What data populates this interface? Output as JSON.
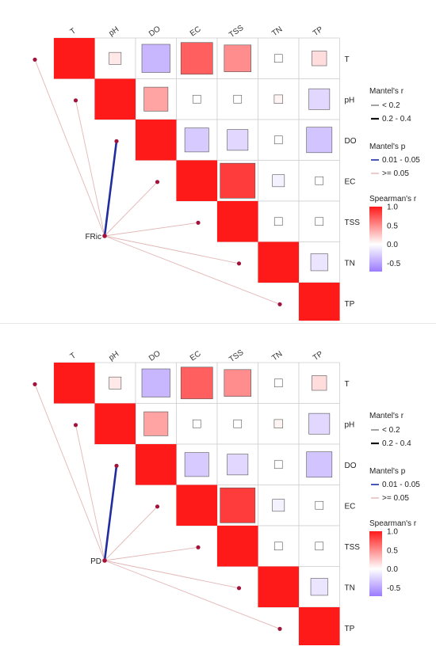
{
  "chart_data": [
    {
      "type": "heatmap",
      "title": "",
      "variables": [
        "T",
        "pH",
        "DO",
        "EC",
        "TSS",
        "TN",
        "TP"
      ],
      "spearman_r": [
        [
          1.0,
          0.1,
          -0.55,
          0.7,
          0.5,
          0.0,
          0.15
        ],
        [
          null,
          1.0,
          0.4,
          0.0,
          0.0,
          0.05,
          -0.3
        ],
        [
          null,
          null,
          1.0,
          -0.4,
          -0.3,
          0.0,
          -0.45
        ],
        [
          null,
          null,
          null,
          1.0,
          0.85,
          -0.1,
          0.0
        ],
        [
          null,
          null,
          null,
          null,
          1.0,
          0.0,
          0.0
        ],
        [
          null,
          null,
          null,
          null,
          null,
          1.0,
          -0.2
        ],
        [
          null,
          null,
          null,
          null,
          null,
          null,
          1.0
        ]
      ],
      "mantel_node": "FRic",
      "mantel_links": [
        {
          "target": "T",
          "r_class": "< 0.2",
          "p_class": ">= 0.05"
        },
        {
          "target": "pH",
          "r_class": "< 0.2",
          "p_class": ">= 0.05"
        },
        {
          "target": "DO",
          "r_class": "0.2 - 0.4",
          "p_class": "0.01 - 0.05"
        },
        {
          "target": "EC",
          "r_class": "< 0.2",
          "p_class": ">= 0.05"
        },
        {
          "target": "TSS",
          "r_class": "< 0.2",
          "p_class": ">= 0.05"
        },
        {
          "target": "TN",
          "r_class": "< 0.2",
          "p_class": ">= 0.05"
        },
        {
          "target": "TP",
          "r_class": "< 0.2",
          "p_class": ">= 0.05"
        }
      ]
    },
    {
      "type": "heatmap",
      "title": "",
      "variables": [
        "T",
        "pH",
        "DO",
        "EC",
        "TSS",
        "TN",
        "TP"
      ],
      "spearman_r": [
        [
          1.0,
          0.1,
          -0.55,
          0.7,
          0.5,
          0.0,
          0.15
        ],
        [
          null,
          1.0,
          0.4,
          0.0,
          0.0,
          0.05,
          -0.3
        ],
        [
          null,
          null,
          1.0,
          -0.4,
          -0.3,
          0.0,
          -0.45
        ],
        [
          null,
          null,
          null,
          1.0,
          0.85,
          -0.1,
          0.0
        ],
        [
          null,
          null,
          null,
          null,
          1.0,
          0.0,
          0.0
        ],
        [
          null,
          null,
          null,
          null,
          null,
          1.0,
          -0.2
        ],
        [
          null,
          null,
          null,
          null,
          null,
          null,
          1.0
        ]
      ],
      "mantel_node": "PD",
      "mantel_links": [
        {
          "target": "T",
          "r_class": "< 0.2",
          "p_class": ">= 0.05"
        },
        {
          "target": "pH",
          "r_class": "< 0.2",
          "p_class": ">= 0.05"
        },
        {
          "target": "DO",
          "r_class": "0.2 - 0.4",
          "p_class": "0.01 - 0.05"
        },
        {
          "target": "EC",
          "r_class": "< 0.2",
          "p_class": ">= 0.05"
        },
        {
          "target": "TSS",
          "r_class": "< 0.2",
          "p_class": ">= 0.05"
        },
        {
          "target": "TN",
          "r_class": "< 0.2",
          "p_class": ">= 0.05"
        },
        {
          "target": "TP",
          "r_class": "< 0.2",
          "p_class": ">= 0.05"
        }
      ]
    }
  ],
  "legend": {
    "mantel_r_title": "Mantel's r",
    "mantel_r_items": [
      "< 0.2",
      "0.2 - 0.4"
    ],
    "mantel_p_title": "Mantel's p",
    "mantel_p_items": [
      "0.01 - 0.05",
      ">= 0.05"
    ],
    "spearman_title": "Spearman's r",
    "spearman_ticks": [
      "1.0",
      "0.5",
      "0.0",
      "-0.5"
    ]
  },
  "colors": {
    "positive": "#ff1a1a",
    "neutral": "#ffffff",
    "negative": "#9b7bff",
    "sig_link": "#1f2d9e",
    "nonsig_link": "#e3b7b7",
    "node": "#a3123a"
  }
}
